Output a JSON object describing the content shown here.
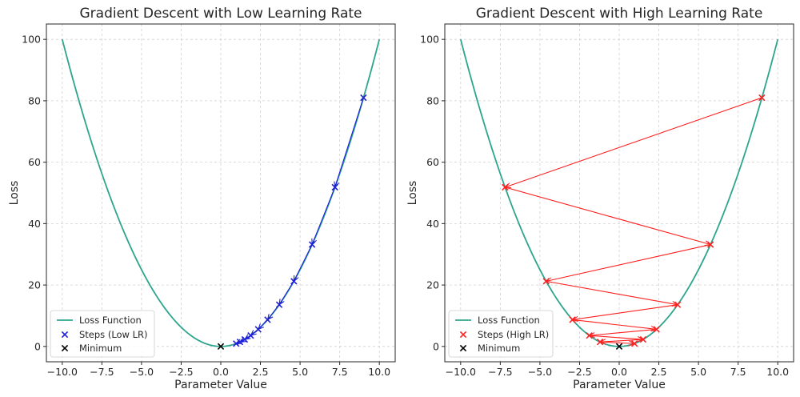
{
  "chart_data": [
    {
      "type": "line",
      "title": "Gradient Descent with Low Learning Rate",
      "xlabel": "Parameter Value",
      "ylabel": "Loss",
      "xlim": [
        -11,
        11
      ],
      "ylim": [
        -5,
        105
      ],
      "xticks": [
        -10,
        -7.5,
        -5,
        -2.5,
        0,
        2.5,
        5,
        7.5,
        10
      ],
      "xtick_labels": [
        "−10.0",
        "−7.5",
        "−5.0",
        "−2.5",
        "0.0",
        "2.5",
        "5.0",
        "7.5",
        "10.0"
      ],
      "yticks": [
        0,
        20,
        40,
        60,
        80,
        100
      ],
      "ytick_labels": [
        "0",
        "20",
        "40",
        "60",
        "80",
        "100"
      ],
      "grid": true,
      "legend_position": "lower-left",
      "curve": {
        "name": "Loss Function",
        "color": "#2ca58d",
        "function": "x^2",
        "x_range": [
          -10,
          10
        ]
      },
      "steps": {
        "name": "Steps (Low LR)",
        "color": "#1f1fd6",
        "arrows": true,
        "x": [
          9.0,
          7.2,
          5.76,
          4.608,
          3.686,
          2.949,
          2.359,
          1.887,
          1.51,
          1.208,
          0.966
        ],
        "y": [
          81.0,
          51.84,
          33.18,
          21.23,
          13.59,
          8.7,
          5.57,
          3.56,
          2.28,
          1.46,
          0.93
        ]
      },
      "minimum": {
        "name": "Minimum",
        "color": "#000000",
        "x": 0,
        "y": 0
      }
    },
    {
      "type": "line",
      "title": "Gradient Descent with High Learning Rate",
      "xlabel": "Parameter Value",
      "ylabel": "Loss",
      "xlim": [
        -11,
        11
      ],
      "ylim": [
        -5,
        105
      ],
      "xticks": [
        -10,
        -7.5,
        -5,
        -2.5,
        0,
        2.5,
        5,
        7.5,
        10
      ],
      "xtick_labels": [
        "−10.0",
        "−7.5",
        "−5.0",
        "−2.5",
        "0.0",
        "2.5",
        "5.0",
        "7.5",
        "10.0"
      ],
      "yticks": [
        0,
        20,
        40,
        60,
        80,
        100
      ],
      "ytick_labels": [
        "0",
        "20",
        "40",
        "60",
        "80",
        "100"
      ],
      "grid": true,
      "legend_position": "lower-left",
      "curve": {
        "name": "Loss Function",
        "color": "#2ca58d",
        "function": "x^2",
        "x_range": [
          -10,
          10
        ]
      },
      "steps": {
        "name": "Steps (High LR)",
        "color": "#ff2020",
        "arrows": true,
        "x": [
          9.0,
          -7.2,
          5.76,
          -4.608,
          3.686,
          -2.949,
          2.359,
          -1.887,
          1.51,
          -1.208,
          0.966
        ],
        "y": [
          81.0,
          51.84,
          33.18,
          21.23,
          13.59,
          8.7,
          5.57,
          3.56,
          2.28,
          1.46,
          0.93
        ]
      },
      "minimum": {
        "name": "Minimum",
        "color": "#000000",
        "x": 0,
        "y": 0
      }
    }
  ]
}
